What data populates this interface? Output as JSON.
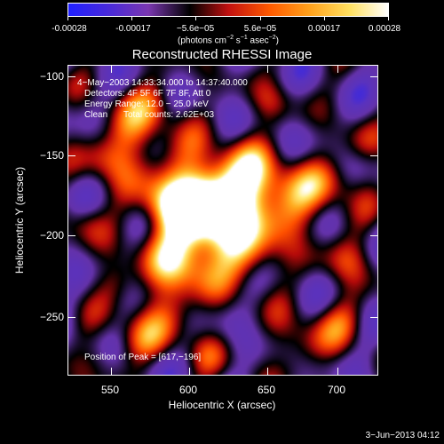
{
  "colorbar": {
    "tick_labels": [
      "-0.00028",
      "-0.00017",
      "−5.6e−05",
      "5.6e−05",
      "0.00017",
      "0.00028"
    ],
    "units": {
      "prefix": "(photons cm",
      "cm_exp": "−2",
      "mid": " s",
      "s_exp": "−1",
      "asec": " asec",
      "asec_exp": "−2",
      "suffix": ")"
    },
    "colors": [
      "#2020ff",
      "#4a2ad8",
      "#7a37b0",
      "#000000",
      "#c01010",
      "#ff5a00",
      "#ff9f1a",
      "#ffe060",
      "#ffffff"
    ]
  },
  "plot": {
    "title": "Reconstructed RHESSI Image",
    "annotations": {
      "time": "4−May−2003 14:33:34.000 to 14:37:40.000",
      "detectors": "Detectors: 4F 5F 6F 7F 8F, Att 0",
      "energy": "Energy Range: 12.0 − 25.0 keV",
      "clean": "Clean",
      "counts": "Total counts: 2.62E+03",
      "peak": "Position of Peak = [617,−196]"
    },
    "xlabel": "Heliocentric X (arcsec)",
    "ylabel": "Heliocentric Y (arcsec)",
    "x_ticks": [
      "550",
      "600",
      "650",
      "700"
    ],
    "y_ticks": [
      "−100",
      "−150",
      "−200",
      "−250"
    ]
  },
  "timestamp": "3−Jun−2013 04:12"
}
